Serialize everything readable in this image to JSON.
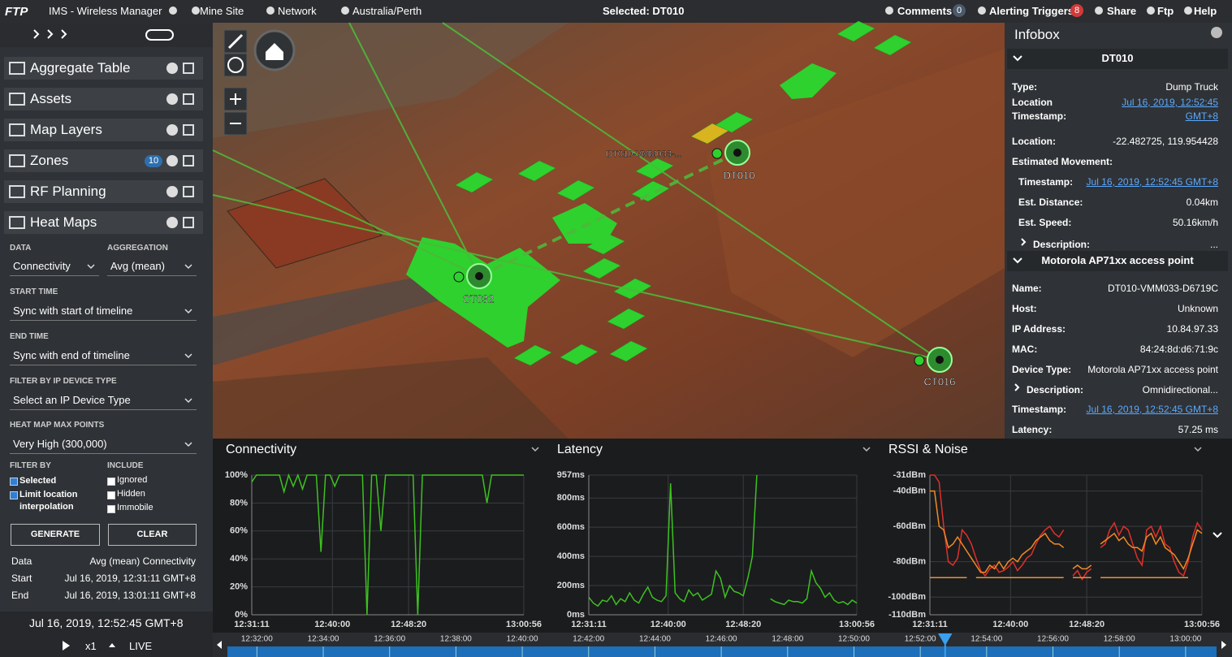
{
  "topbar": {
    "logo": "FTP",
    "app": "IMS - Wireless Manager",
    "site": "Mine Site",
    "network": "Network",
    "timezone": "Australia/Perth",
    "selected": "Selected: DT010",
    "comments": "Comments",
    "comments_count": 0,
    "alerts": "Alerting Triggers",
    "alerts_count": 8,
    "share": "Share",
    "user": "Ftp",
    "help": "Help"
  },
  "sidebar": {
    "panels": [
      {
        "label": "Aggregate Table"
      },
      {
        "label": "Assets"
      },
      {
        "label": "Map Layers"
      },
      {
        "label": "Zones",
        "badge": 10
      },
      {
        "label": "RF Planning"
      },
      {
        "label": "Heat Maps"
      }
    ],
    "heatmap": {
      "data_label": "DATA",
      "data": "Connectivity",
      "aggregation_label": "AGGREGATION",
      "aggregation": "Avg (mean)",
      "start_label": "START TIME",
      "start": "Sync with start of timeline",
      "end_label": "END TIME",
      "end": "Sync with end of timeline",
      "device_label": "FILTER BY IP DEVICE TYPE",
      "device": "Select an IP Device Type",
      "max_label": "HEAT MAP MAX POINTS",
      "max": "Very High (300,000)",
      "filter_label": "FILTER BY",
      "include_label": "INCLUDE",
      "filters": [
        "Selected",
        "Limit location interpolation"
      ],
      "includes": [
        "Ignored",
        "Hidden",
        "Immobile"
      ],
      "generate": "GENERATE",
      "clear": "CLEAR",
      "summary": [
        [
          "Data",
          "Avg (mean) Connectivity"
        ],
        [
          "Start",
          "Jul 16, 2019, 12:31:11 GMT+8"
        ],
        [
          "End",
          "Jul 16, 2019, 13:01:11 GMT+8"
        ]
      ]
    }
  },
  "clock": {
    "time": "Jul 16, 2019, 12:52:45 GMT+8",
    "speed": "x1",
    "live": "LIVE"
  },
  "map": {
    "labels": [
      "DT010-VMM033-...",
      "DT010",
      "CT032",
      "CT016"
    ]
  },
  "infobox": {
    "title": "Infobox",
    "sections": [
      {
        "title": "DT010",
        "rows": [
          {
            "label": "Type:",
            "value": "Dump Truck"
          },
          {
            "label": "Location Timestamp:",
            "value": "Jul 16, 2019, 12:52:45 GMT+8",
            "link": true
          },
          {
            "label": "Location:",
            "value": "-22.482725, 119.954428"
          },
          {
            "label": "Estimated Movement:"
          },
          {
            "label": "Timestamp:",
            "value": "Jul 16, 2019, 12:52:45 GMT+8",
            "link": true
          },
          {
            "label": "Est. Distance:",
            "value": "0.04km"
          },
          {
            "label": "Est. Speed:",
            "value": "50.16km/h"
          },
          {
            "label": "Description:",
            "value": "..."
          }
        ]
      },
      {
        "title": "Motorola AP71xx access point",
        "rows": [
          {
            "label": "Name:",
            "value": "DT010-VMM033-D6719C"
          },
          {
            "label": "Host:",
            "value": "Unknown"
          },
          {
            "label": "IP Address:",
            "value": "10.84.97.33"
          },
          {
            "label": "MAC:",
            "value": "84:24:8d:d6:71:9c"
          },
          {
            "label": "Device Type:",
            "value": "Motorola AP71xx access point"
          },
          {
            "label": "Description:",
            "value": "Omnidirectional..."
          },
          {
            "label": "Timestamp:",
            "value": "Jul 16, 2019, 12:52:45 GMT+8",
            "link": true
          },
          {
            "label": "Latency:",
            "value": "57.25 ms"
          }
        ]
      }
    ]
  },
  "chart_data": [
    {
      "type": "line",
      "title": "Connectivity",
      "xlim": [
        "12:31:11",
        "13:00:56"
      ],
      "xticks": [
        "12:31:11",
        "12:40:00",
        "12:48:20",
        "13:00:56"
      ],
      "ylim": [
        0,
        100
      ],
      "yticks": [
        {
          "value": 0,
          "label": "0%"
        },
        {
          "value": 20,
          "label": "20%"
        },
        {
          "value": 40,
          "label": "40%"
        },
        {
          "value": 60,
          "label": "60%"
        },
        {
          "value": 80,
          "label": "80%"
        },
        {
          "value": 100,
          "label": "100%"
        }
      ],
      "grid": true,
      "series": [
        {
          "color": "#3cc21e",
          "values": [
            95,
            100,
            100,
            100,
            100,
            100,
            100,
            88,
            100,
            92,
            100,
            90,
            100,
            100,
            100,
            45,
            100,
            100,
            92,
            100,
            100,
            100,
            100,
            100,
            100,
            0,
            100,
            100,
            60,
            100,
            100,
            100,
            100,
            100,
            100,
            100,
            0,
            100,
            100,
            100,
            100,
            100,
            100,
            100,
            100,
            100,
            100,
            100,
            100,
            100,
            100,
            80,
            100,
            100,
            100,
            100,
            100,
            100,
            100,
            100
          ]
        }
      ]
    },
    {
      "type": "line",
      "title": "Latency",
      "xlim": [
        "12:31:11",
        "13:00:56"
      ],
      "xticks": [
        "12:31:11",
        "12:40:00",
        "12:48:20",
        "13:00:56"
      ],
      "ylim": [
        0,
        957
      ],
      "yticks": [
        {
          "value": 0,
          "label": "0ms"
        },
        {
          "value": 200,
          "label": "200ms"
        },
        {
          "value": 400,
          "label": "400ms"
        },
        {
          "value": 600,
          "label": "600ms"
        },
        {
          "value": 800,
          "label": "800ms"
        },
        {
          "value": 957,
          "label": "957ms"
        }
      ],
      "grid": true,
      "series": [
        {
          "color": "#3cc21e",
          "values": [
            120,
            80,
            60,
            100,
            90,
            130,
            70,
            110,
            90,
            150,
            100,
            80,
            140,
            190,
            120,
            100,
            90,
            130,
            900,
            150,
            110,
            90,
            170,
            130,
            150,
            100,
            120,
            140,
            300,
            250,
            120,
            200,
            160,
            150,
            130,
            250,
            400,
            957,
            null,
            null,
            110,
            90,
            80,
            70,
            100,
            90,
            90,
            80,
            110,
            300,
            220,
            180,
            120,
            150,
            100,
            80,
            90,
            70,
            100,
            80
          ]
        }
      ]
    },
    {
      "type": "line",
      "title": "RSSI & Noise",
      "xlim": [
        "12:31:11",
        "13:00:56"
      ],
      "xticks": [
        "12:31:11",
        "12:40:00",
        "12:48:20",
        "13:00:56"
      ],
      "ylim": [
        -110,
        -31
      ],
      "yticks": [
        {
          "value": -110,
          "label": "-110dBm"
        },
        {
          "value": -100,
          "label": "-100dBm"
        },
        {
          "value": -80,
          "label": "-80dBm"
        },
        {
          "value": -60,
          "label": "-60dBm"
        },
        {
          "value": -40,
          "label": "-40dBm"
        },
        {
          "value": -31,
          "label": "-31dBm"
        }
      ],
      "grid": true,
      "series": [
        {
          "color": "#e0302a",
          "values": [
            -31,
            -31,
            -35,
            -60,
            -80,
            -82,
            -78,
            -62,
            -65,
            -70,
            -78,
            -85,
            -88,
            -84,
            -82,
            -86,
            -85,
            -83,
            -80,
            -85,
            -82,
            -78,
            -76,
            -70,
            -65,
            -62,
            -60,
            -64,
            -66,
            -62,
            null,
            -88,
            -85,
            -90,
            -86,
            -84,
            null,
            -72,
            -70,
            -62,
            -58,
            -65,
            -60,
            -62,
            -70,
            -78,
            -82,
            -62,
            -60,
            -66,
            -60,
            -70,
            -72,
            -80,
            -86,
            -88,
            -80,
            -66,
            -58,
            -62
          ]
        },
        {
          "color": "#f08a24",
          "values": [
            -40,
            -40,
            -60,
            -62,
            -72,
            -70,
            -66,
            -70,
            -74,
            -78,
            -82,
            -86,
            -86,
            -82,
            -84,
            -80,
            -84,
            -80,
            -78,
            -80,
            -76,
            -74,
            -72,
            -68,
            -66,
            -64,
            -68,
            -70,
            -70,
            -72,
            null,
            -84,
            -82,
            -84,
            -84,
            -82,
            null,
            -70,
            -68,
            -66,
            -64,
            -68,
            -66,
            -70,
            -72,
            -72,
            -74,
            -66,
            -64,
            -70,
            -66,
            -72,
            -74,
            -76,
            -80,
            -84,
            -78,
            -70,
            -62,
            -64
          ]
        },
        {
          "color": "#e8923a",
          "values": [
            -89,
            -89,
            -89,
            -89,
            -89,
            -89,
            -89,
            -89,
            -89,
            null,
            -89,
            -89,
            -89,
            -89,
            -89,
            -89,
            -89,
            -89,
            -89,
            -89,
            -89,
            -89,
            -89,
            -89,
            -89,
            -89,
            -89,
            -89,
            -89,
            -89,
            null,
            -89,
            -89,
            -89,
            -89,
            -89,
            null,
            -89,
            -89,
            -89,
            -89,
            -89,
            -89,
            -89,
            -89,
            -89,
            -89,
            -89,
            -89,
            -89,
            -89,
            -89,
            -89,
            -89,
            -89,
            -89,
            -89,
            null,
            null,
            null
          ]
        }
      ]
    }
  ],
  "timeline": {
    "range": [
      "12:31:11",
      "13:00:56"
    ],
    "ticks": [
      "12:32:00",
      "12:34:00",
      "12:36:00",
      "12:38:00",
      "12:40:00",
      "12:42:00",
      "12:44:00",
      "12:46:00",
      "12:48:00",
      "12:50:00",
      "12:52:00",
      "12:54:00",
      "12:56:00",
      "12:58:00",
      "13:00:00"
    ],
    "current": "12:52:45"
  }
}
